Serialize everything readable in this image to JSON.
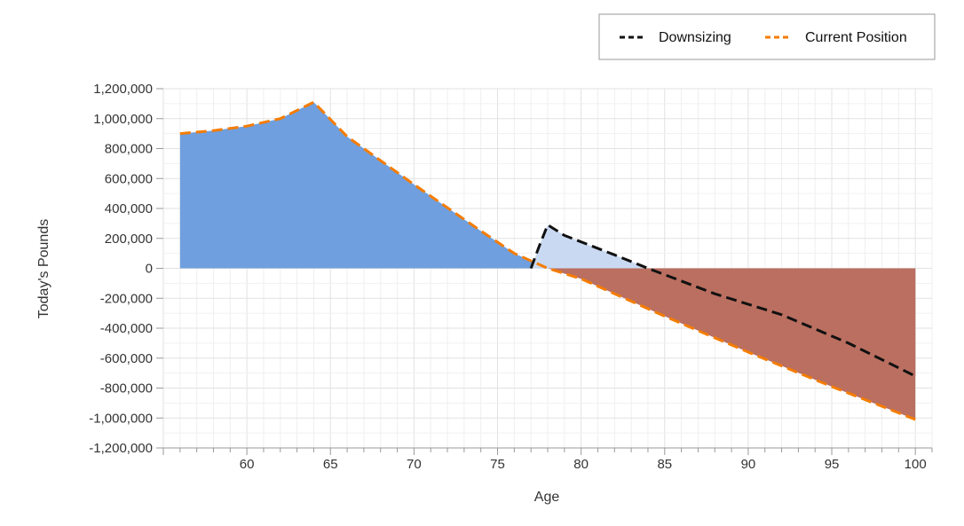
{
  "chart_data": {
    "type": "area",
    "xlabel": "Age",
    "ylabel": "Today's Pounds",
    "xlim": [
      55,
      101
    ],
    "ylim": [
      -1200000,
      1200000
    ],
    "x_ticks": [
      60,
      65,
      70,
      75,
      80,
      85,
      90,
      95,
      100
    ],
    "x_tick_labels": [
      "60",
      "65",
      "70",
      "75",
      "80",
      "85",
      "90",
      "95",
      "100"
    ],
    "y_ticks": [
      1200000,
      1000000,
      800000,
      600000,
      400000,
      200000,
      0,
      -200000,
      -400000,
      -600000,
      -800000,
      -1000000,
      -1200000
    ],
    "y_tick_labels": [
      "1,200,000",
      "1,000,000",
      "800,000",
      "600,000",
      "400,000",
      "200,000",
      "0",
      "-200,000",
      "-400,000",
      "-600,000",
      "-800,000",
      "-1,000,000",
      "-1,200,000"
    ],
    "grid": true,
    "legend_position": "top-right",
    "series": [
      {
        "name": "Downsizing",
        "color": "#111111",
        "style": "dashed",
        "points": [
          [
            77,
            0
          ],
          [
            77.5,
            150000
          ],
          [
            78,
            290000
          ],
          [
            79,
            220000
          ],
          [
            82,
            90000
          ],
          [
            84,
            0
          ],
          [
            88,
            -170000
          ],
          [
            92,
            -310000
          ],
          [
            96,
            -500000
          ],
          [
            100,
            -720000
          ]
        ]
      },
      {
        "name": "Current Position",
        "color": "#f57c00",
        "style": "dashed",
        "points": [
          [
            56,
            900000
          ],
          [
            58,
            920000
          ],
          [
            60,
            950000
          ],
          [
            62,
            1000000
          ],
          [
            64,
            1110000
          ],
          [
            66,
            880000
          ],
          [
            70,
            560000
          ],
          [
            74,
            250000
          ],
          [
            76,
            100000
          ],
          [
            78,
            0
          ],
          [
            80,
            -70000
          ],
          [
            85,
            -320000
          ],
          [
            90,
            -560000
          ],
          [
            95,
            -790000
          ],
          [
            100,
            -1010000
          ]
        ]
      }
    ],
    "fills": [
      {
        "name": "current-positive-area",
        "color": "#6f9fde",
        "series": "Current Position",
        "region": "positive"
      },
      {
        "name": "downsizing-positive-area",
        "color": "#c9d9f1",
        "series": "Downsizing",
        "region": "positive"
      },
      {
        "name": "downsizing-negative-area",
        "color": "#a9493a",
        "series": "Downsizing",
        "region": "negative"
      },
      {
        "name": "current-negative-area",
        "color": "#ba6f60",
        "series": "Current Position",
        "region": "negative"
      }
    ]
  },
  "legend": {
    "items": [
      {
        "label": "Downsizing",
        "color": "#111111"
      },
      {
        "label": "Current Position",
        "color": "#f57c00"
      }
    ]
  }
}
